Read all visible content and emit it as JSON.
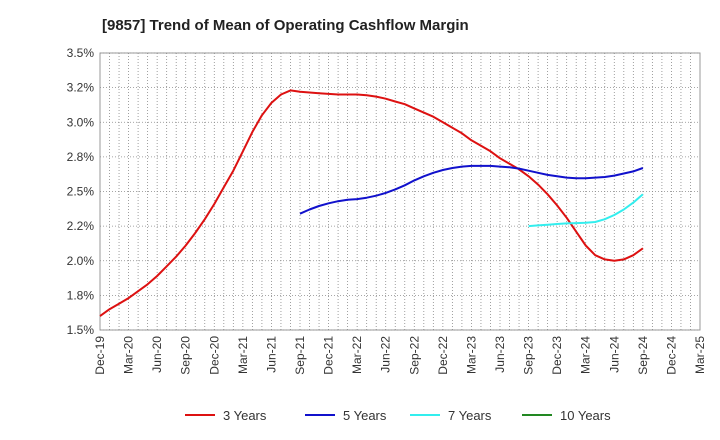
{
  "chart_data": {
    "type": "line",
    "title": "[9857]  Trend of Mean of Operating Cashflow Margin",
    "xlabel": "",
    "ylabel": "",
    "ylim": [
      1.5,
      3.5
    ],
    "y_ticks": [
      "1.5%",
      "1.8%",
      "2.0%",
      "2.2%",
      "2.5%",
      "2.8%",
      "3.0%",
      "3.2%",
      "3.5%"
    ],
    "y_tick_values": [
      1.5,
      1.75,
      2.0,
      2.25,
      2.5,
      2.75,
      3.0,
      3.25,
      3.5
    ],
    "x_ticks": [
      "Dec-19",
      "Mar-20",
      "Jun-20",
      "Sep-20",
      "Dec-20",
      "Mar-21",
      "Jun-21",
      "Sep-21",
      "Dec-21",
      "Mar-22",
      "Jun-22",
      "Sep-22",
      "Dec-22",
      "Mar-23",
      "Jun-23",
      "Sep-23",
      "Dec-23",
      "Mar-24",
      "Jun-24",
      "Sep-24",
      "Dec-24",
      "Mar-25"
    ],
    "grid": true,
    "legend_position": "bottom",
    "series": [
      {
        "name": "3 Years",
        "color": "#dd1111",
        "x": [
          "Dec-19",
          "Jan-20",
          "Feb-20",
          "Mar-20",
          "Apr-20",
          "May-20",
          "Jun-20",
          "Jul-20",
          "Aug-20",
          "Sep-20",
          "Oct-20",
          "Nov-20",
          "Dec-20",
          "Jan-21",
          "Feb-21",
          "Mar-21",
          "Apr-21",
          "May-21",
          "Jun-21",
          "Jul-21",
          "Aug-21",
          "Sep-21",
          "Oct-21",
          "Nov-21",
          "Dec-21",
          "Jan-22",
          "Feb-22",
          "Mar-22",
          "Apr-22",
          "May-22",
          "Jun-22",
          "Jul-22",
          "Aug-22",
          "Sep-22",
          "Oct-22",
          "Nov-22",
          "Dec-22",
          "Jan-23",
          "Feb-23",
          "Mar-23",
          "Apr-23",
          "May-23",
          "Jun-23",
          "Jul-23",
          "Aug-23",
          "Sep-23",
          "Oct-23",
          "Nov-23",
          "Dec-23",
          "Jan-24",
          "Feb-24",
          "Mar-24",
          "Apr-24",
          "May-24",
          "Jun-24",
          "Jul-24",
          "Aug-24",
          "Sep-24"
        ],
        "values": [
          1.6,
          1.65,
          1.69,
          1.73,
          1.78,
          1.83,
          1.89,
          1.96,
          2.03,
          2.11,
          2.2,
          2.3,
          2.41,
          2.53,
          2.65,
          2.79,
          2.93,
          3.05,
          3.14,
          3.2,
          3.23,
          3.22,
          3.215,
          3.21,
          3.205,
          3.2,
          3.2,
          3.2,
          3.195,
          3.185,
          3.17,
          3.15,
          3.13,
          3.1,
          3.07,
          3.04,
          3.0,
          2.96,
          2.92,
          2.87,
          2.83,
          2.79,
          2.74,
          2.7,
          2.66,
          2.61,
          2.55,
          2.48,
          2.4,
          2.31,
          2.21,
          2.11,
          2.04,
          2.01,
          2.0,
          2.01,
          2.04,
          2.09
        ]
      },
      {
        "name": "5 Years",
        "color": "#1111cc",
        "x": [
          "Sep-21",
          "Oct-21",
          "Nov-21",
          "Dec-21",
          "Jan-22",
          "Feb-22",
          "Mar-22",
          "Apr-22",
          "May-22",
          "Jun-22",
          "Jul-22",
          "Aug-22",
          "Sep-22",
          "Oct-22",
          "Nov-22",
          "Dec-22",
          "Jan-23",
          "Feb-23",
          "Mar-23",
          "Apr-23",
          "May-23",
          "Jun-23",
          "Jul-23",
          "Aug-23",
          "Sep-23",
          "Oct-23",
          "Nov-23",
          "Dec-23",
          "Jan-24",
          "Feb-24",
          "Mar-24",
          "Apr-24",
          "May-24",
          "Jun-24",
          "Jul-24",
          "Aug-24",
          "Sep-24"
        ],
        "values": [
          2.34,
          2.37,
          2.395,
          2.415,
          2.43,
          2.44,
          2.445,
          2.455,
          2.47,
          2.49,
          2.515,
          2.545,
          2.58,
          2.61,
          2.635,
          2.655,
          2.67,
          2.68,
          2.685,
          2.685,
          2.685,
          2.68,
          2.675,
          2.665,
          2.65,
          2.635,
          2.62,
          2.61,
          2.6,
          2.595,
          2.595,
          2.6,
          2.605,
          2.615,
          2.63,
          2.645,
          2.67
        ]
      },
      {
        "name": "7 Years",
        "color": "#33eeee",
        "x": [
          "Sep-23",
          "Oct-23",
          "Nov-23",
          "Dec-23",
          "Jan-24",
          "Feb-24",
          "Mar-24",
          "Apr-24",
          "May-24",
          "Jun-24",
          "Jul-24",
          "Aug-24",
          "Sep-24"
        ],
        "values": [
          2.25,
          2.255,
          2.26,
          2.265,
          2.27,
          2.272,
          2.275,
          2.28,
          2.3,
          2.33,
          2.37,
          2.42,
          2.48
        ]
      },
      {
        "name": "10 Years",
        "color": "#228822",
        "x": [],
        "values": []
      }
    ]
  }
}
